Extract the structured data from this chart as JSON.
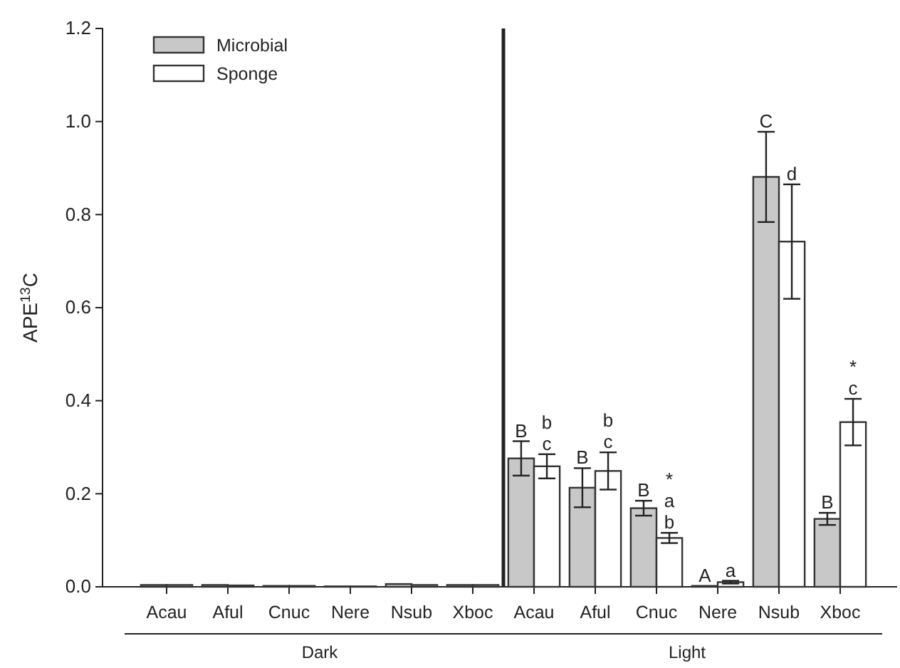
{
  "chart_data": {
    "type": "bar",
    "ylabel": "APE$^{13}$C",
    "categories": [
      "Acau",
      "Aful",
      "Cnuc",
      "Nere",
      "Nsub",
      "Xboc",
      "Acau",
      "Aful",
      "Cnuc",
      "Nere",
      "Nsub",
      "Xboc"
    ],
    "series": [
      {
        "name": "Microbial",
        "color": "#c8c8c8",
        "values": [
          0.004,
          0.004,
          0.002,
          0.001,
          0.006,
          0.004,
          0.276,
          0.213,
          0.169,
          0.002,
          0.881,
          0.146
        ],
        "errors": [
          null,
          null,
          null,
          null,
          null,
          null,
          0.037,
          0.042,
          0.016,
          null,
          0.097,
          0.013
        ],
        "value_labels": [
          null,
          null,
          null,
          null,
          null,
          null,
          "B",
          "B",
          "B",
          "A",
          "C",
          "B"
        ]
      },
      {
        "name": "Sponge",
        "color": "#ffffff",
        "values": [
          0.004,
          0.003,
          0.002,
          0.001,
          0.004,
          0.004,
          0.259,
          0.249,
          0.105,
          0.01,
          0.742,
          0.354
        ],
        "errors": [
          null,
          null,
          null,
          null,
          null,
          null,
          0.026,
          0.04,
          0.011,
          0.003,
          0.123,
          0.05
        ],
        "value_labels": [
          null,
          null,
          null,
          null,
          null,
          null,
          "b\nc",
          "b\nc",
          "*\na\nb",
          "a",
          "d",
          "*\nc"
        ]
      }
    ],
    "annotations": [
      "Dark",
      "Light"
    ],
    "ylim": [
      0,
      1.2
    ],
    "yticks": [
      {
        "value": 0,
        "label": "0.0"
      },
      {
        "value": 0.2,
        "label": "0.2"
      },
      {
        "value": 0.4,
        "label": "0.4"
      },
      {
        "value": 0.6,
        "label": "0.6"
      },
      {
        "value": 0.8,
        "label": "0.8"
      },
      {
        "value": 1,
        "label": "1.0"
      },
      {
        "value": 1.2,
        "label": "1.2"
      }
    ],
    "grid": false,
    "legend": "top left"
  }
}
